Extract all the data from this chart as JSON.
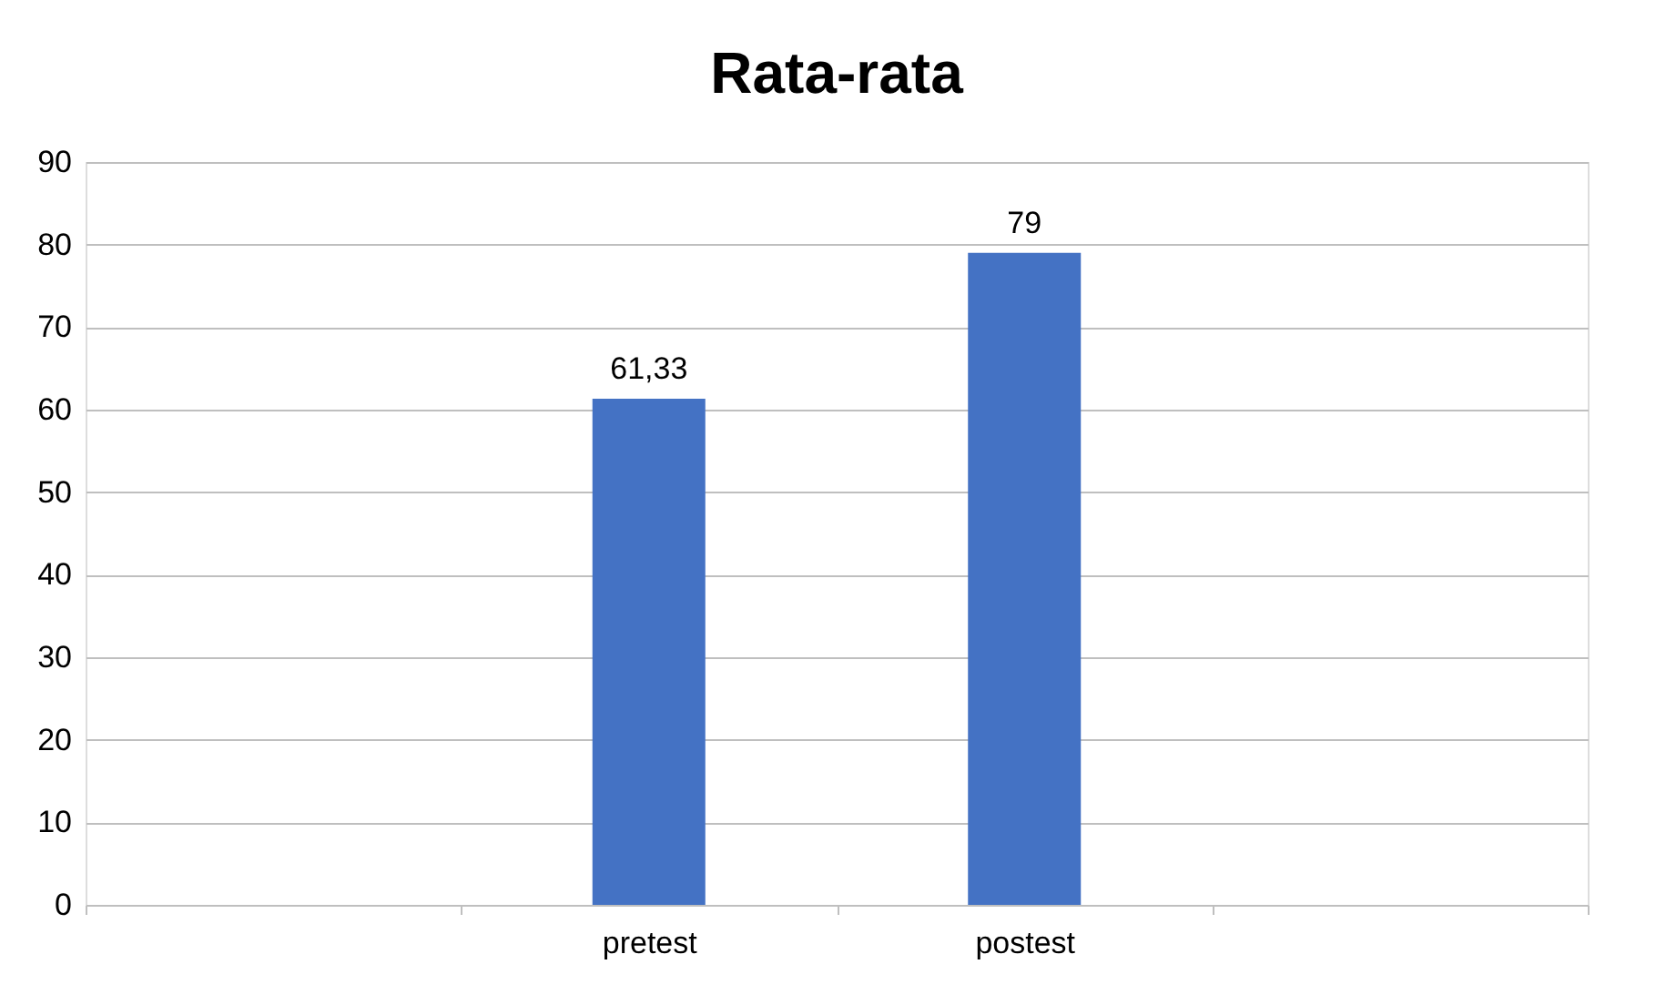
{
  "chart_data": {
    "type": "bar",
    "title": "Rata-rata",
    "categories": [
      null,
      "pretest",
      "postest",
      null
    ],
    "values": [
      null,
      61.33,
      79,
      null
    ],
    "value_labels": [
      null,
      "61,33",
      "79",
      null
    ],
    "color": "#4472c4",
    "ylim": [
      0,
      90
    ],
    "yticks": [
      0,
      10,
      20,
      30,
      40,
      50,
      60,
      70,
      80,
      90
    ],
    "grid": "y"
  }
}
